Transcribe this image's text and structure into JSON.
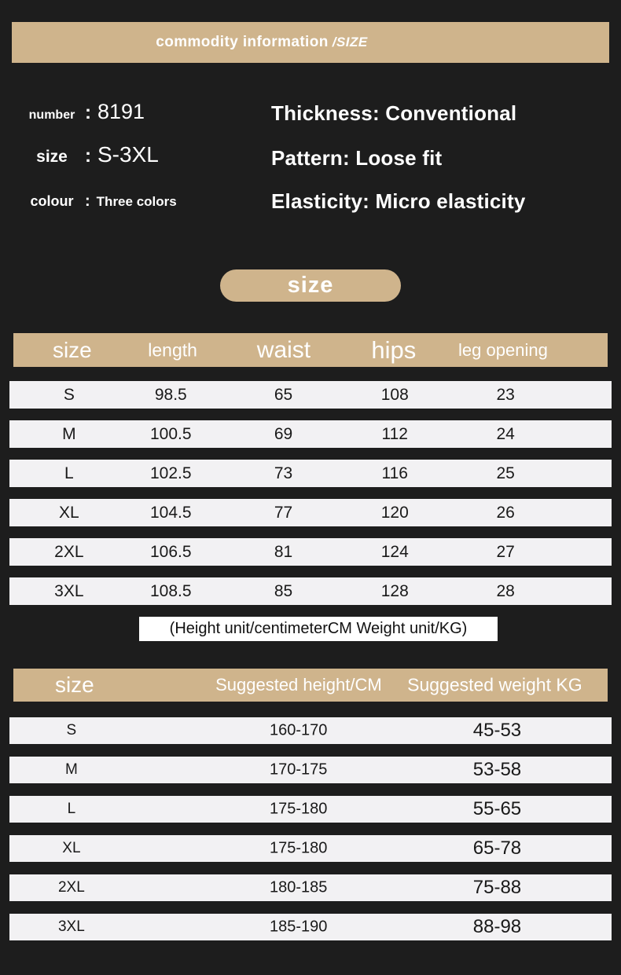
{
  "colors": {
    "background": "#1d1d1d",
    "accent_tan": "#cfb48c",
    "row_background": "#f2f1f3",
    "note_background": "#ffffff",
    "light_text": "#ffffff",
    "dark_text": "#191919"
  },
  "banner": {
    "title": "commodity information",
    "slash_label": "/SIZE"
  },
  "product_info": {
    "fields": [
      {
        "label": "number",
        "colon": ":",
        "value": "8191"
      },
      {
        "label": "size",
        "colon": ":",
        "value": "S-3XL"
      },
      {
        "label": "colour",
        "colon": ":",
        "value": "Three colors"
      }
    ],
    "specs": [
      "Thickness: Conventional",
      "Pattern: Loose fit",
      "Elasticity: Micro elasticity"
    ]
  },
  "size_section": {
    "pill_label": "size"
  },
  "size_table": {
    "headers": [
      "size",
      "length",
      "waist",
      "hips",
      "leg opening"
    ],
    "rows": [
      [
        "S",
        "98.5",
        "65",
        "108",
        "23"
      ],
      [
        "M",
        "100.5",
        "69",
        "112",
        "24"
      ],
      [
        "L",
        "102.5",
        "73",
        "116",
        "25"
      ],
      [
        "XL",
        "104.5",
        "77",
        "120",
        "26"
      ],
      [
        "2XL",
        "106.5",
        "81",
        "124",
        "27"
      ],
      [
        "3XL",
        "108.5",
        "85",
        "128",
        "28"
      ]
    ]
  },
  "unit_note": "(Height unit/centimeterCM Weight unit/KG)",
  "fit_table": {
    "headers": [
      "size",
      "Suggested height/CM",
      "Suggested weight KG"
    ],
    "rows": [
      [
        "S",
        "160-170",
        "45-53"
      ],
      [
        "M",
        "170-175",
        "53-58"
      ],
      [
        "L",
        "175-180",
        "55-65"
      ],
      [
        "XL",
        "175-180",
        "65-78"
      ],
      [
        "2XL",
        "180-185",
        "75-88"
      ],
      [
        "3XL",
        "185-190",
        "88-98"
      ]
    ]
  }
}
